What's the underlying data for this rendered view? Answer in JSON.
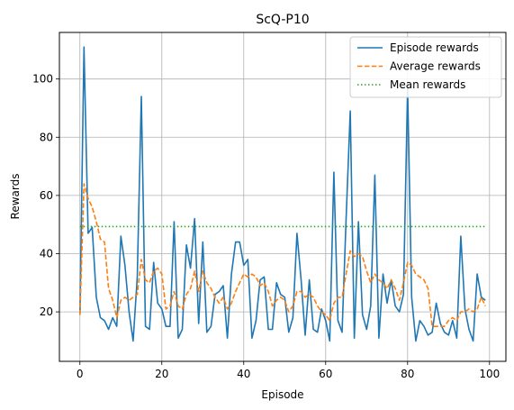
{
  "chart_data": {
    "type": "line",
    "title": "ScQ-P10",
    "xlabel": "Episode",
    "ylabel": "Rewards",
    "xlim": [
      -5,
      104
    ],
    "ylim": [
      3,
      116
    ],
    "xticks": [
      0,
      20,
      40,
      60,
      80,
      100
    ],
    "yticks": [
      20,
      40,
      60,
      80,
      100
    ],
    "grid": true,
    "legend_position": "top-right",
    "series": [
      {
        "name": "Episode rewards",
        "style": "solid",
        "color": "#1f77b4",
        "x": [
          0,
          1,
          2,
          3,
          4,
          5,
          6,
          7,
          8,
          9,
          10,
          11,
          12,
          13,
          14,
          15,
          16,
          17,
          18,
          19,
          20,
          21,
          22,
          23,
          24,
          25,
          26,
          27,
          28,
          29,
          30,
          31,
          32,
          33,
          34,
          35,
          36,
          37,
          38,
          39,
          40,
          41,
          42,
          43,
          44,
          45,
          46,
          47,
          48,
          49,
          50,
          51,
          52,
          53,
          54,
          55,
          56,
          57,
          58,
          59,
          60,
          61,
          62,
          63,
          64,
          65,
          66,
          67,
          68,
          69,
          70,
          71,
          72,
          73,
          74,
          75,
          76,
          77,
          78,
          79,
          80,
          81,
          82,
          83,
          84,
          85,
          86,
          87,
          88,
          89,
          90,
          91,
          92,
          93,
          94,
          95,
          96,
          97,
          98,
          99
        ],
        "values": [
          19,
          111,
          47,
          49,
          25,
          18,
          17,
          14,
          18,
          15,
          46,
          36,
          20,
          10,
          32,
          94,
          15,
          14,
          37,
          23,
          21,
          15,
          15,
          51,
          11,
          14,
          43,
          35,
          52,
          16,
          44,
          13,
          15,
          26,
          27,
          29,
          11,
          33,
          44,
          44,
          36,
          38,
          11,
          17,
          31,
          32,
          14,
          14,
          30,
          26,
          25,
          13,
          18,
          47,
          31,
          12,
          31,
          14,
          13,
          21,
          17,
          10,
          68,
          17,
          13,
          52,
          89,
          11,
          51,
          19,
          14,
          22,
          67,
          11,
          33,
          23,
          31,
          22,
          20,
          26,
          97,
          25,
          10,
          17,
          15,
          12,
          13,
          23,
          16,
          13,
          12,
          17,
          11,
          46,
          21,
          14,
          10,
          33,
          25,
          24
        ]
      },
      {
        "name": "Average rewards",
        "style": "dashed",
        "color": "#ff7f0e",
        "x": [
          0,
          1,
          2,
          3,
          4,
          5,
          6,
          7,
          8,
          9,
          10,
          11,
          12,
          13,
          14,
          15,
          16,
          17,
          18,
          19,
          20,
          21,
          22,
          23,
          24,
          25,
          26,
          27,
          28,
          29,
          30,
          31,
          32,
          33,
          34,
          35,
          36,
          37,
          38,
          39,
          40,
          41,
          42,
          43,
          44,
          45,
          46,
          47,
          48,
          49,
          50,
          51,
          52,
          53,
          54,
          55,
          56,
          57,
          58,
          59,
          60,
          61,
          62,
          63,
          64,
          65,
          66,
          67,
          68,
          69,
          70,
          71,
          72,
          73,
          74,
          75,
          76,
          77,
          78,
          79,
          80,
          81,
          82,
          83,
          84,
          85,
          86,
          87,
          88,
          89,
          90,
          91,
          92,
          93,
          94,
          95,
          96,
          97,
          98,
          99
        ],
        "values": [
          19,
          64,
          59,
          56,
          51,
          45,
          44,
          28,
          24,
          18,
          24,
          25,
          24,
          25,
          26,
          38,
          31,
          30,
          34,
          35,
          33,
          21,
          22,
          27,
          22,
          21,
          26,
          28,
          34,
          27,
          34,
          30,
          28,
          25,
          23,
          25,
          21,
          23,
          27,
          30,
          33,
          32,
          33,
          32,
          29,
          30,
          27,
          22,
          24,
          25,
          24,
          20,
          22,
          27,
          27,
          25,
          26,
          25,
          22,
          20,
          19,
          17,
          23,
          25,
          25,
          33,
          41,
          39,
          40,
          39,
          34,
          30,
          33,
          31,
          30,
          28,
          31,
          28,
          24,
          30,
          37,
          36,
          33,
          32,
          31,
          28,
          15,
          15,
          15,
          15,
          17,
          18,
          17,
          20,
          20,
          21,
          20,
          21,
          25,
          22
        ]
      },
      {
        "name": "Mean rewards",
        "style": "dotted",
        "color": "#2ca02c",
        "x": [
          0,
          99
        ],
        "values": [
          49.3,
          49.3
        ]
      }
    ]
  }
}
